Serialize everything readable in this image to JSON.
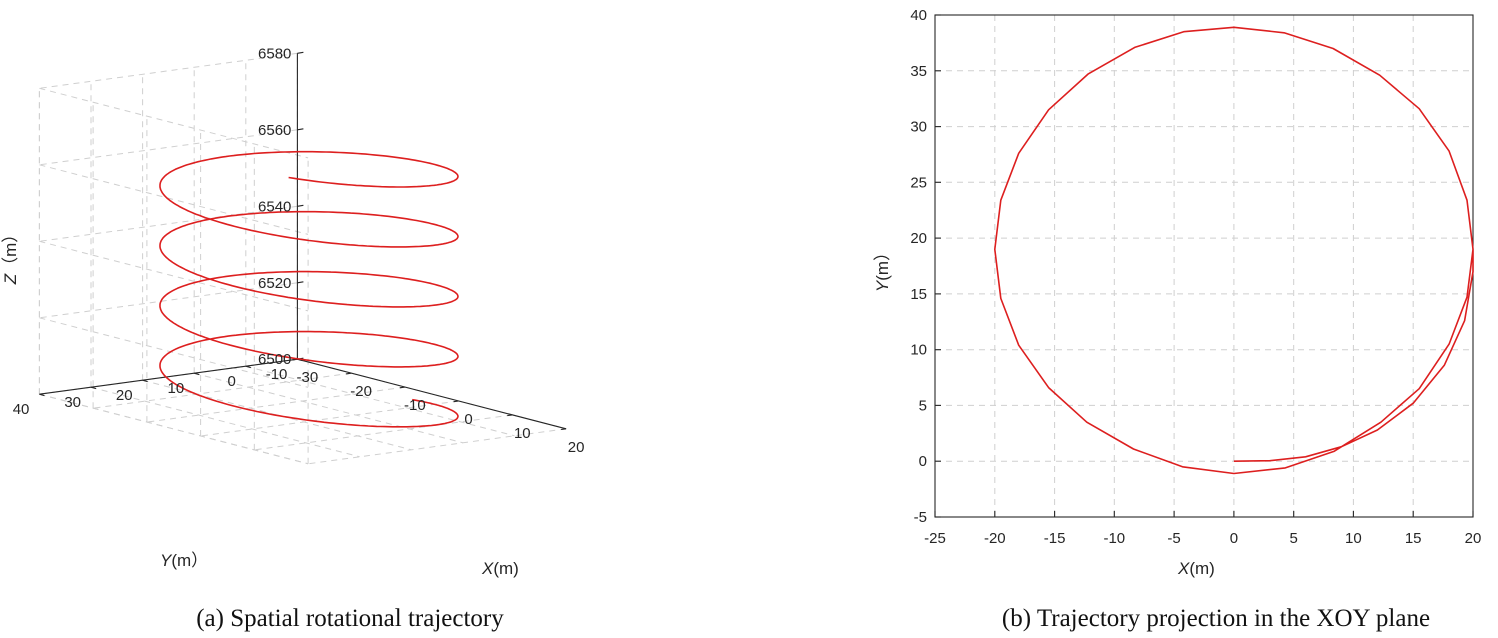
{
  "chart_data": [
    {
      "type": "line3d",
      "caption": "(a)  Spatial rotational trajectory",
      "xlabel_prefix": "X",
      "xlabel_unit": "(m)",
      "ylabel_prefix": "Y",
      "ylabel_unit": "(m）",
      "zlabel_prefix": "Z",
      "zlabel_unit": "（m）",
      "xlim": [
        -30,
        20
      ],
      "ylim": [
        -10,
        40
      ],
      "zlim": [
        6500,
        6580
      ],
      "xticks": [
        "-30",
        "-20",
        "-10",
        "0",
        "10",
        "20"
      ],
      "yticks": [
        "-10",
        "0",
        "10",
        "20",
        "30",
        "40"
      ],
      "zticks": [
        "6500",
        "6520",
        "6540",
        "6560",
        "6580"
      ],
      "grid": true,
      "series": [
        {
          "color": "#dd1f1f",
          "center_x": 0,
          "center_y": 19,
          "radius": 20,
          "z_start": 6502,
          "z_end": 6571,
          "turns": 4.4
        }
      ]
    },
    {
      "type": "line",
      "caption": "(b)  Trajectory projection in the XOY plane",
      "xlabel_prefix": "X",
      "xlabel_unit": "(m)",
      "ylabel_prefix": "Y",
      "ylabel_unit": "(m）",
      "xlim": [
        -25,
        20
      ],
      "ylim": [
        -5,
        40
      ],
      "xticks": [
        "-25",
        "-20",
        "-15",
        "-10",
        "-5",
        "0",
        "5",
        "10",
        "15",
        "20"
      ],
      "yticks": [
        "-5",
        "0",
        "5",
        "10",
        "15",
        "20",
        "25",
        "30",
        "35",
        "40"
      ],
      "grid": true,
      "series": [
        {
          "color": "#dd1f1f",
          "points": [
            [
              0,
              0
            ],
            [
              3,
              0.05
            ],
            [
              6,
              0.4
            ],
            [
              9,
              1.3
            ],
            [
              12,
              2.8
            ],
            [
              15,
              5.2
            ],
            [
              17.6,
              8.6
            ],
            [
              19.3,
              12.6
            ],
            [
              20,
              17
            ],
            [
              20,
              19
            ],
            [
              19.5,
              23.4
            ],
            [
              18,
              27.8
            ],
            [
              15.5,
              31.6
            ],
            [
              12.2,
              34.6
            ],
            [
              8.3,
              37.0
            ],
            [
              4.2,
              38.4
            ],
            [
              0,
              38.9
            ],
            [
              -4.2,
              38.5
            ],
            [
              -8.3,
              37.1
            ],
            [
              -12.2,
              34.7
            ],
            [
              -15.5,
              31.5
            ],
            [
              -18,
              27.6
            ],
            [
              -19.5,
              23.4
            ],
            [
              -20,
              19
            ],
            [
              -19.5,
              14.6
            ],
            [
              -18,
              10.4
            ],
            [
              -15.5,
              6.6
            ],
            [
              -12.3,
              3.5
            ],
            [
              -8.4,
              1.1
            ],
            [
              -4.3,
              -0.5
            ],
            [
              0,
              -1.1
            ],
            [
              4.3,
              -0.6
            ],
            [
              8.4,
              0.9
            ],
            [
              12.3,
              3.5
            ],
            [
              15.5,
              6.5
            ],
            [
              18,
              10.5
            ],
            [
              19.5,
              14.7
            ],
            [
              20,
              19
            ]
          ]
        }
      ]
    }
  ]
}
